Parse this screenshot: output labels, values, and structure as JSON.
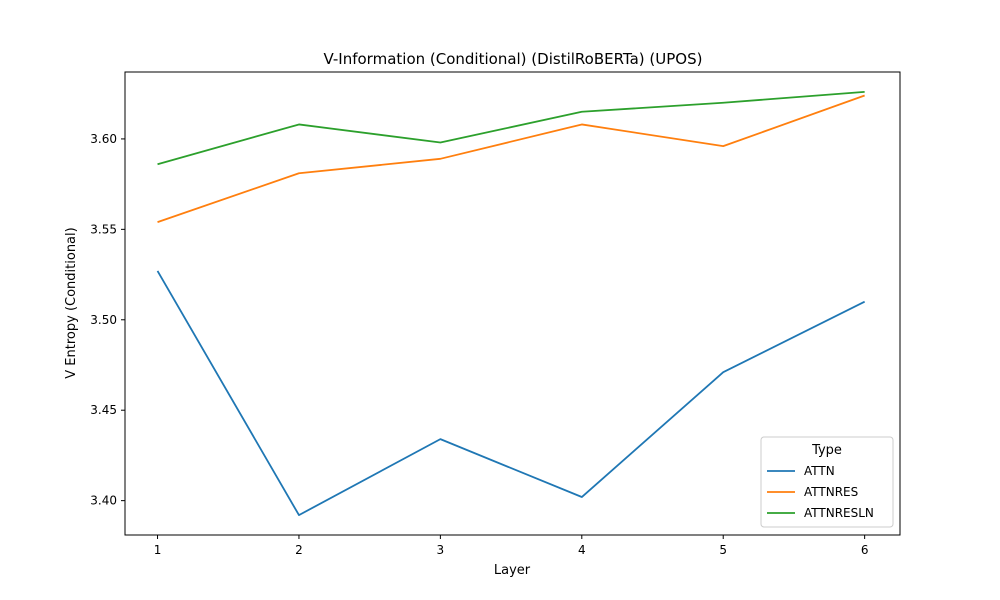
{
  "chart_data": {
    "type": "line",
    "title": "V-Information (Conditional) (DistilRoBERTa) (UPOS)",
    "xlabel": "Layer",
    "ylabel": "V Entropy (Conditional)",
    "x": [
      1,
      2,
      3,
      4,
      5,
      6
    ],
    "xlim": [
      0.77,
      6.25
    ],
    "ylim": [
      3.381,
      3.637
    ],
    "xticks": [
      1,
      2,
      3,
      4,
      5,
      6
    ],
    "xtick_labels": [
      "1",
      "2",
      "3",
      "4",
      "5",
      "6"
    ],
    "yticks": [
      3.4,
      3.45,
      3.5,
      3.55,
      3.6
    ],
    "ytick_labels": [
      "3.40",
      "3.45",
      "3.50",
      "3.55",
      "3.60"
    ],
    "grid": false,
    "legend": {
      "title": "Type",
      "placement": "lower-right"
    },
    "series": [
      {
        "name": "ATTN",
        "color": "#1f77b4",
        "values": [
          3.527,
          3.392,
          3.434,
          3.402,
          3.471,
          3.51
        ]
      },
      {
        "name": "ATTNRES",
        "color": "#ff7f0e",
        "values": [
          3.554,
          3.581,
          3.589,
          3.608,
          3.596,
          3.624
        ]
      },
      {
        "name": "ATTNRESLN",
        "color": "#2ca02c",
        "values": [
          3.586,
          3.608,
          3.598,
          3.615,
          3.62,
          3.626
        ]
      }
    ]
  }
}
